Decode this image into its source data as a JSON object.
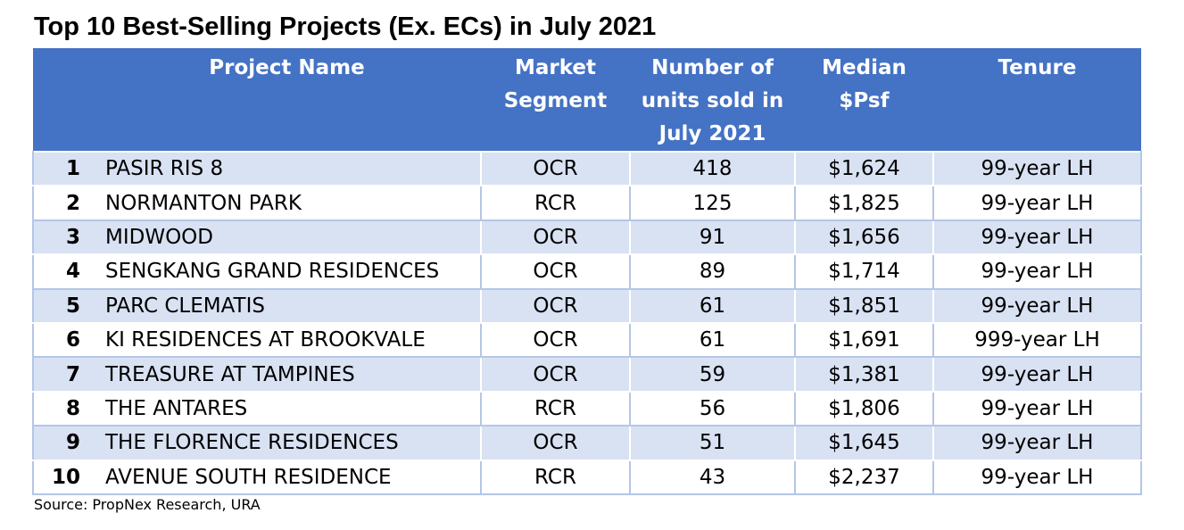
{
  "title": "Top 10 Best-Selling Projects (Ex. ECs) in July 2021",
  "headers": {
    "rank": "",
    "name": "Project Name",
    "segment": [
      "Market",
      "Segment"
    ],
    "units": [
      "Number of",
      "units sold in",
      "July 2021"
    ],
    "psf": [
      "Median",
      "$Psf"
    ],
    "tenure": "Tenure"
  },
  "rows": [
    {
      "rank": "1",
      "name": "PASIR RIS 8",
      "segment": "OCR",
      "units": "418",
      "psf": "$1,624",
      "tenure": "99-year LH"
    },
    {
      "rank": "2",
      "name": "NORMANTON PARK",
      "segment": "RCR",
      "units": "125",
      "psf": "$1,825",
      "tenure": "99-year LH"
    },
    {
      "rank": "3",
      "name": "MIDWOOD",
      "segment": "OCR",
      "units": "91",
      "psf": "$1,656",
      "tenure": "99-year LH"
    },
    {
      "rank": "4",
      "name": "SENGKANG GRAND RESIDENCES",
      "segment": "OCR",
      "units": "89",
      "psf": "$1,714",
      "tenure": "99-year LH"
    },
    {
      "rank": "5",
      "name": "PARC CLEMATIS",
      "segment": "OCR",
      "units": "61",
      "psf": "$1,851",
      "tenure": "99-year LH"
    },
    {
      "rank": "6",
      "name": "KI RESIDENCES AT BROOKVALE",
      "segment": "OCR",
      "units": "61",
      "psf": "$1,691",
      "tenure": "999-year LH"
    },
    {
      "rank": "7",
      "name": "TREASURE AT TAMPINES",
      "segment": "OCR",
      "units": "59",
      "psf": "$1,381",
      "tenure": "99-year LH"
    },
    {
      "rank": "8",
      "name": "THE ANTARES",
      "segment": "RCR",
      "units": "56",
      "psf": "$1,806",
      "tenure": "99-year LH"
    },
    {
      "rank": "9",
      "name": "THE FLORENCE RESIDENCES",
      "segment": "OCR",
      "units": "51",
      "psf": "$1,645",
      "tenure": "99-year LH"
    },
    {
      "rank": "10",
      "name": "AVENUE SOUTH RESIDENCE",
      "segment": "RCR",
      "units": "43",
      "psf": "$2,237",
      "tenure": "99-year LH"
    }
  ],
  "source": "Source: PropNex Research, URA"
}
